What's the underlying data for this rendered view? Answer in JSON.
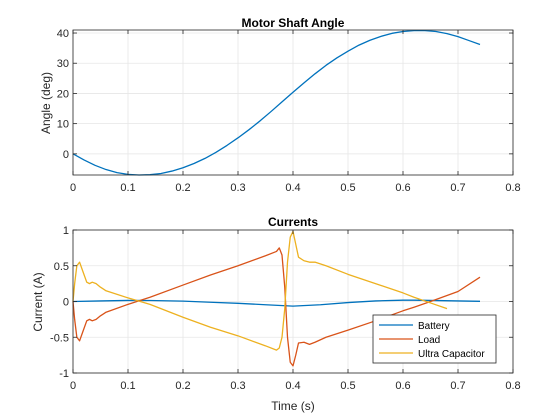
{
  "figure": {
    "background": "#ffffff",
    "axis_color": "#262626",
    "grid_color": "#e6e6e6"
  },
  "chart_data": [
    {
      "type": "line",
      "title": "Motor Shaft Angle",
      "xlabel": "",
      "ylabel": "Angle (deg)",
      "xlim": [
        0,
        0.8
      ],
      "ylim": [
        -7,
        41
      ],
      "xticks": [
        0,
        0.1,
        0.2,
        0.3,
        0.4,
        0.5,
        0.6,
        0.7,
        0.8
      ],
      "xtick_labels": [
        "0",
        "0.1",
        "0.2",
        "0.3",
        "0.4",
        "0.5",
        "0.6",
        "0.7",
        "0.8"
      ],
      "yticks": [
        0,
        10,
        20,
        30,
        40
      ],
      "ytick_labels": [
        "0",
        "10",
        "20",
        "30",
        "40"
      ],
      "grid": true,
      "legend": null,
      "series": [
        {
          "color": "#0072BD",
          "x": [
            0,
            0.02,
            0.04,
            0.06,
            0.08,
            0.1,
            0.12,
            0.14,
            0.16,
            0.18,
            0.2,
            0.22,
            0.24,
            0.26,
            0.28,
            0.3,
            0.32,
            0.34,
            0.36,
            0.38,
            0.4,
            0.42,
            0.44,
            0.46,
            0.48,
            0.5,
            0.52,
            0.54,
            0.56,
            0.58,
            0.6,
            0.62,
            0.64,
            0.66,
            0.68,
            0.7,
            0.72,
            0.74
          ],
          "y": [
            0,
            -2,
            -3.8,
            -5.2,
            -6.2,
            -6.8,
            -7,
            -6.9,
            -6.5,
            -5.7,
            -4.6,
            -3.2,
            -1.5,
            0.5,
            2.8,
            5.3,
            8,
            10.9,
            14,
            17.2,
            20.4,
            23.5,
            26.5,
            29.3,
            31.8,
            34,
            36,
            37.6,
            38.9,
            39.9,
            40.5,
            40.8,
            40.8,
            40.5,
            39.8,
            38.8,
            37.5,
            36.2
          ]
        }
      ]
    },
    {
      "type": "line",
      "title": "Currents",
      "xlabel": "Time (s)",
      "ylabel": "Current (A)",
      "xlim": [
        0,
        0.8
      ],
      "ylim": [
        -1,
        1
      ],
      "xticks": [
        0,
        0.1,
        0.2,
        0.3,
        0.4,
        0.5,
        0.6,
        0.7,
        0.8
      ],
      "xtick_labels": [
        "0",
        "0.1",
        "0.2",
        "0.3",
        "0.4",
        "0.5",
        "0.6",
        "0.7",
        "0.8"
      ],
      "yticks": [
        -1,
        -0.5,
        0,
        0.5,
        1
      ],
      "ytick_labels": [
        "-1",
        "-0.5",
        "0",
        "0.5",
        "1"
      ],
      "grid": true,
      "legend": "bottom-right",
      "series": [
        {
          "name": "Battery",
          "color": "#0072BD",
          "x": [
            0,
            0.05,
            0.1,
            0.14,
            0.2,
            0.25,
            0.3,
            0.35,
            0.4,
            0.45,
            0.5,
            0.55,
            0.6,
            0.62,
            0.65,
            0.7,
            0.74
          ],
          "y": [
            0,
            0.008,
            0.015,
            0.014,
            0.005,
            -0.01,
            -0.025,
            -0.045,
            -0.065,
            -0.045,
            -0.015,
            0.008,
            0.018,
            0.018,
            0.015,
            0.008,
            0.003
          ]
        },
        {
          "name": "Load",
          "color": "#D95319",
          "x": [
            0,
            0.003,
            0.007,
            0.012,
            0.018,
            0.025,
            0.03,
            0.035,
            0.042,
            0.05,
            0.056,
            0.06,
            0.1,
            0.14,
            0.2,
            0.25,
            0.3,
            0.35,
            0.37,
            0.375,
            0.38,
            0.385,
            0.39,
            0.395,
            0.4,
            0.405,
            0.41,
            0.42,
            0.43,
            0.44,
            0.46,
            0.5,
            0.55,
            0.6,
            0.62,
            0.65,
            0.7,
            0.74
          ],
          "y": [
            0,
            -0.25,
            -0.5,
            -0.55,
            -0.42,
            -0.27,
            -0.25,
            -0.27,
            -0.25,
            -0.2,
            -0.17,
            -0.15,
            -0.04,
            0.06,
            0.23,
            0.37,
            0.5,
            0.64,
            0.7,
            0.75,
            0.65,
            0.2,
            -0.5,
            -0.85,
            -0.9,
            -0.75,
            -0.58,
            -0.57,
            -0.6,
            -0.57,
            -0.5,
            -0.4,
            -0.27,
            -0.13,
            -0.08,
            0.0,
            0.14,
            0.34
          ]
        },
        {
          "name": "Ultra Capacitor",
          "color": "#EDB120",
          "x": [
            0,
            0.003,
            0.007,
            0.012,
            0.018,
            0.025,
            0.03,
            0.035,
            0.042,
            0.05,
            0.056,
            0.06,
            0.1,
            0.14,
            0.2,
            0.25,
            0.3,
            0.35,
            0.37,
            0.375,
            0.38,
            0.385,
            0.39,
            0.395,
            0.4,
            0.405,
            0.41,
            0.42,
            0.43,
            0.44,
            0.46,
            0.5,
            0.55,
            0.6,
            0.62,
            0.65,
            0.68
          ],
          "y": [
            0,
            0.25,
            0.5,
            0.55,
            0.42,
            0.27,
            0.25,
            0.27,
            0.25,
            0.2,
            0.17,
            0.15,
            0.05,
            -0.04,
            -0.22,
            -0.36,
            -0.48,
            -0.62,
            -0.68,
            -0.65,
            -0.5,
            -0.1,
            0.55,
            0.9,
            0.98,
            0.8,
            0.62,
            0.57,
            0.55,
            0.55,
            0.5,
            0.38,
            0.25,
            0.12,
            0.06,
            -0.02,
            -0.1
          ]
        }
      ]
    }
  ]
}
